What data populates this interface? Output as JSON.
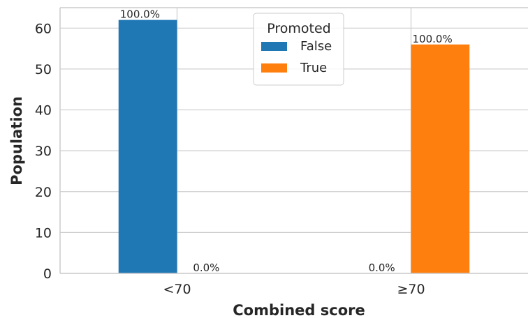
{
  "chart_data": {
    "type": "bar",
    "xlabel": "Combined score",
    "ylabel": "Population",
    "categories": [
      "<70",
      "≥70"
    ],
    "ylim": [
      0,
      65
    ],
    "yticks": [
      0,
      10,
      20,
      30,
      40,
      50,
      60
    ],
    "grid": true,
    "legend": {
      "title": "Promoted",
      "placement": "top-center"
    },
    "series": [
      {
        "name": "False",
        "color": "#1f77b4",
        "values": [
          62,
          0
        ],
        "labels": [
          "100.0%",
          "0.0%"
        ]
      },
      {
        "name": "True",
        "color": "#ff7f0e",
        "values": [
          0,
          56
        ],
        "labels": [
          "0.0%",
          "100.0%"
        ]
      }
    ]
  }
}
